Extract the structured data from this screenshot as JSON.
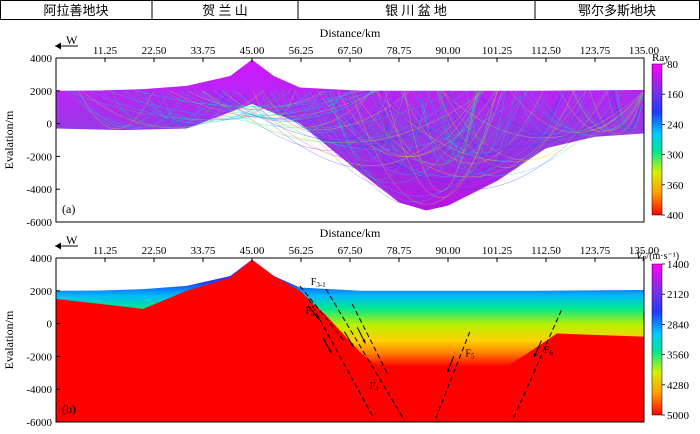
{
  "header": {
    "regions": [
      "阿拉善地块",
      "贺 兰 山",
      "银 川 盆 地",
      "鄂尔多斯地块"
    ]
  },
  "chart_data": [
    {
      "type": "heatmap",
      "panel_label": "(a)",
      "xlabel": "Distance/km",
      "ylabel": "Evalation/m",
      "direction_marker": "W",
      "x_ticks": [
        "11.25",
        "22.50",
        "33.75",
        "45.00",
        "56.25",
        "67.50",
        "78.75",
        "90.00",
        "101.25",
        "112.50",
        "123.75",
        "135.00"
      ],
      "y_ticks": [
        "4000",
        "2000",
        "0",
        "-2000",
        "-4000",
        "-6000"
      ],
      "xlim": [
        0,
        135
      ],
      "ylim": [
        -6000,
        4000
      ],
      "colorbar": {
        "title": "Ray",
        "ticks": [
          "80",
          "160",
          "240",
          "300",
          "360",
          "400"
        ],
        "colors": [
          "#ff00ff",
          "#8a2be2",
          "#1e3cff",
          "#00c8ff",
          "#00e890",
          "#d8f000",
          "#ff9a00",
          "#ff0000"
        ]
      },
      "surface_top": [
        [
          0,
          2000
        ],
        [
          10,
          2020
        ],
        [
          20,
          2100
        ],
        [
          30,
          2300
        ],
        [
          40,
          2900
        ],
        [
          45,
          3900
        ],
        [
          50,
          2900
        ],
        [
          56,
          2200
        ],
        [
          70,
          2000
        ],
        [
          90,
          2000
        ],
        [
          110,
          2000
        ],
        [
          135,
          2050
        ]
      ],
      "basin_bottom": [
        [
          0,
          -300
        ],
        [
          15,
          -400
        ],
        [
          30,
          -300
        ],
        [
          45,
          1200
        ],
        [
          56,
          0
        ],
        [
          67.5,
          -2500
        ],
        [
          78.75,
          -4800
        ],
        [
          85,
          -5300
        ],
        [
          90,
          -5000
        ],
        [
          101.25,
          -3500
        ],
        [
          112.5,
          -1500
        ],
        [
          123.75,
          -800
        ],
        [
          135,
          -600
        ]
      ]
    },
    {
      "type": "heatmap",
      "panel_label": "(b)",
      "xlabel": "Distance/km",
      "ylabel": "Evalation/m",
      "direction_marker": "W",
      "x_ticks": [
        "11.25",
        "22.50",
        "33.75",
        "45.00",
        "56.25",
        "67.50",
        "78.75",
        "90.00",
        "101.25",
        "112.50",
        "123.75",
        "135.00"
      ],
      "y_ticks": [
        "4000",
        "2000",
        "0",
        "-2000",
        "-4000",
        "-6000"
      ],
      "xlim": [
        0,
        135
      ],
      "ylim": [
        -6000,
        4000
      ],
      "colorbar": {
        "title_main": "V",
        "title_sub": "P",
        "title_unit": "/(m·s⁻¹)",
        "ticks": [
          "1400",
          "2120",
          "2840",
          "3560",
          "4280",
          "5000"
        ],
        "colors": [
          "#ff00ff",
          "#8a2be2",
          "#1e3cff",
          "#00c8ff",
          "#00e890",
          "#d8f000",
          "#ff9a00",
          "#ff0000"
        ]
      },
      "faults": [
        {
          "main": "F",
          "sub": "3-1",
          "line": [
            [
              56,
              2300
            ],
            [
              66,
              -1000
            ]
          ],
          "label_at": [
            58.5,
            2350
          ]
        },
        {
          "main": "F",
          "sub": "3",
          "line": [
            [
              58,
              1500
            ],
            [
              73,
              -5800
            ]
          ],
          "label_at": [
            57.3,
            600
          ]
        },
        {
          "main": "F",
          "sub": "",
          "line": [
            [
              62,
              2100
            ],
            [
              80,
              -5900
            ]
          ],
          "label_at": [
            0,
            0
          ]
        },
        {
          "main": "F",
          "sub": "4",
          "line": [
            [
              68,
              1200
            ],
            [
              76,
              -3000
            ]
          ],
          "label_at": [
            72,
            -4000
          ]
        },
        {
          "main": "F",
          "sub": "5",
          "line": [
            [
              95,
              -500
            ],
            [
              87,
              -5900
            ]
          ],
          "label_at": [
            94,
            -2000
          ]
        },
        {
          "main": "F",
          "sub": "6",
          "line": [
            [
              116,
              800
            ],
            [
              105,
              -5800
            ]
          ],
          "label_at": [
            112,
            -1800
          ]
        }
      ],
      "surface_top": [
        [
          0,
          2000
        ],
        [
          10,
          2020
        ],
        [
          20,
          2100
        ],
        [
          30,
          2300
        ],
        [
          40,
          2900
        ],
        [
          45,
          3900
        ],
        [
          50,
          2900
        ],
        [
          56,
          2200
        ],
        [
          70,
          2000
        ],
        [
          90,
          2000
        ],
        [
          110,
          2000
        ],
        [
          135,
          2050
        ]
      ]
    }
  ]
}
